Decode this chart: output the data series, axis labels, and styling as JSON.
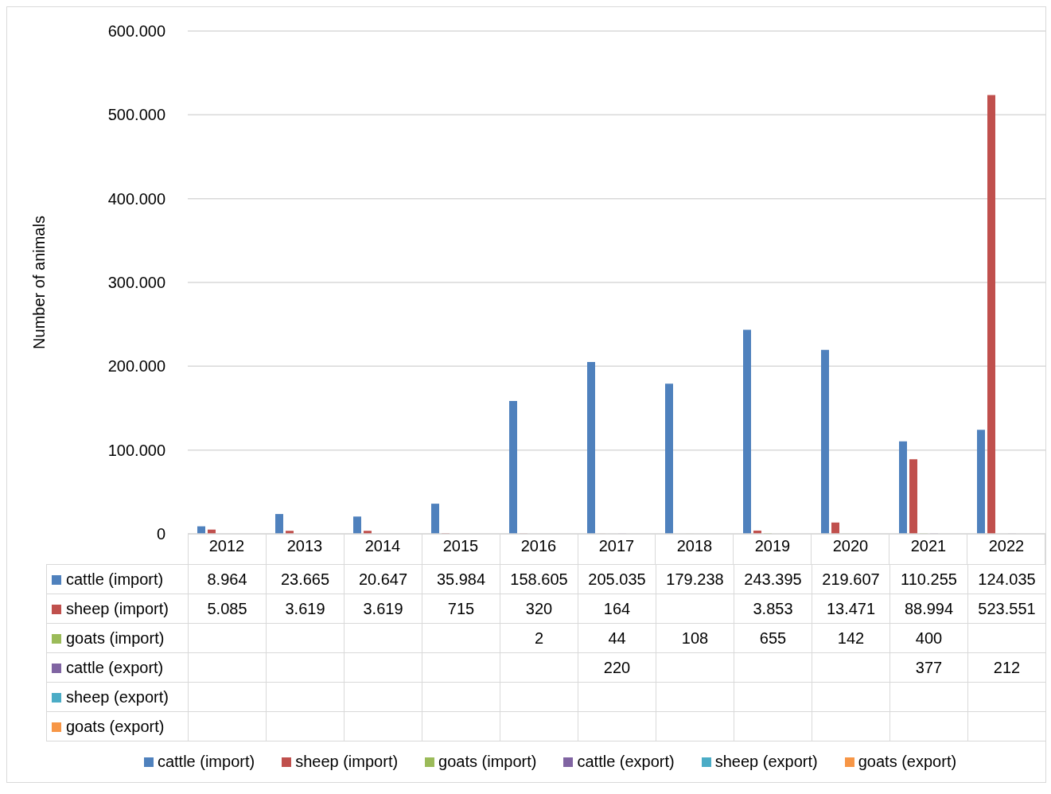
{
  "chart_data": {
    "type": "bar",
    "ylabel": "Number of animals",
    "categories": [
      "2012",
      "2013",
      "2014",
      "2015",
      "2016",
      "2017",
      "2018",
      "2019",
      "2020",
      "2021",
      "2022"
    ],
    "series": [
      {
        "name": "cattle (import)",
        "color": "#4f81bd",
        "values": [
          8964,
          23665,
          20647,
          35984,
          158605,
          205035,
          179238,
          243395,
          219607,
          110255,
          124035
        ],
        "value_labels": [
          "8.964",
          "23.665",
          "20.647",
          "35.984",
          "158.605",
          "205.035",
          "179.238",
          "243.395",
          "219.607",
          "110.255",
          "124.035"
        ]
      },
      {
        "name": "sheep (import)",
        "color": "#c0504d",
        "values": [
          5085,
          3619,
          3619,
          715,
          320,
          164,
          null,
          3853,
          13471,
          88994,
          523551
        ],
        "value_labels": [
          "5.085",
          "3.619",
          "3.619",
          "715",
          "320",
          "164",
          null,
          "3.853",
          "13.471",
          "88.994",
          "523.551"
        ]
      },
      {
        "name": "goats (import)",
        "color": "#9bbb59",
        "values": [
          null,
          null,
          null,
          null,
          2,
          44,
          108,
          655,
          142,
          400,
          null
        ],
        "value_labels": [
          null,
          null,
          null,
          null,
          "2",
          "44",
          "108",
          "655",
          "142",
          "400",
          null
        ]
      },
      {
        "name": "cattle (export)",
        "color": "#8064a2",
        "values": [
          null,
          null,
          null,
          null,
          null,
          220,
          null,
          null,
          null,
          377,
          212
        ],
        "value_labels": [
          null,
          null,
          null,
          null,
          null,
          "220",
          null,
          null,
          null,
          "377",
          "212"
        ]
      },
      {
        "name": "sheep (export)",
        "color": "#4bacc6",
        "values": [
          null,
          null,
          null,
          null,
          null,
          null,
          null,
          null,
          null,
          null,
          null
        ],
        "value_labels": [
          null,
          null,
          null,
          null,
          null,
          null,
          null,
          null,
          null,
          null,
          null
        ]
      },
      {
        "name": "goats (export)",
        "color": "#f79646",
        "values": [
          null,
          null,
          null,
          null,
          null,
          null,
          null,
          null,
          null,
          null,
          null
        ],
        "value_labels": [
          null,
          null,
          null,
          null,
          null,
          null,
          null,
          null,
          null,
          null,
          null
        ]
      }
    ],
    "ylim": [
      0,
      600000
    ],
    "yticks": [
      0,
      {
        "value": 100000,
        "label": "100.000"
      },
      {
        "value": 200000,
        "label": "200.000"
      },
      {
        "value": 300000,
        "label": "300.000"
      },
      {
        "value": 400000,
        "label": "400.000"
      },
      {
        "value": 500000,
        "label": "500.000"
      },
      {
        "value": 600000,
        "label": "600.000"
      }
    ],
    "grid": "y",
    "legend": "bottom"
  }
}
